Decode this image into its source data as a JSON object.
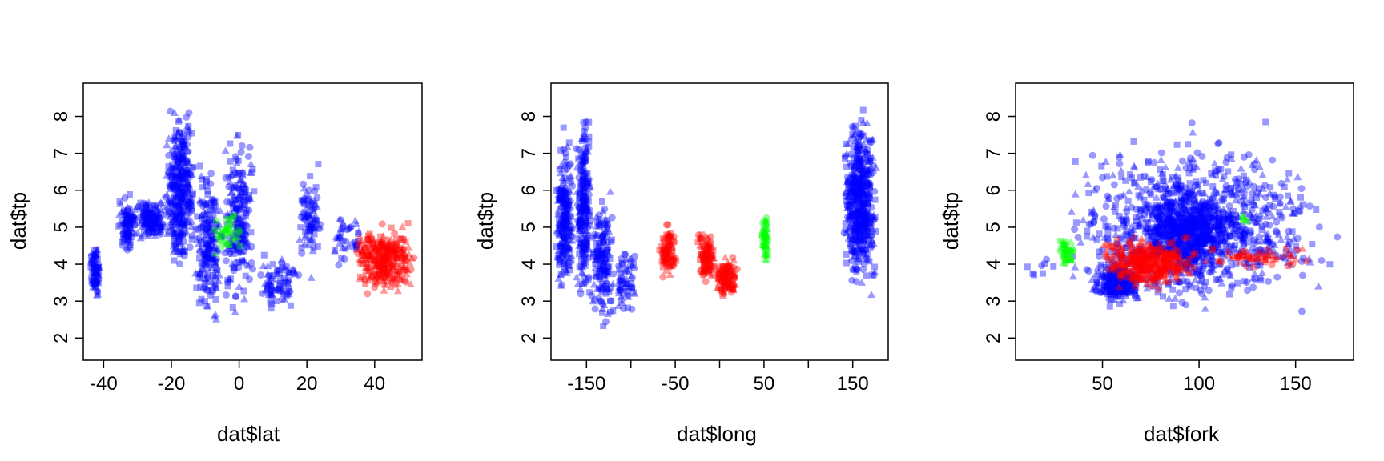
{
  "colors": {
    "blue": "#0000ff",
    "red": "#ff0000",
    "green": "#00ff00",
    "axis": "#000000"
  },
  "chart_data": [
    {
      "type": "scatter",
      "xlabel": "dat$lat",
      "ylabel": "dat$tp",
      "xlim": [
        -46,
        54
      ],
      "ylim": [
        1.4,
        8.9
      ],
      "xticks": [
        "-40",
        "-20",
        "0",
        "20",
        "40"
      ],
      "xtick_values": [
        -40,
        -20,
        0,
        20,
        40
      ],
      "yticks": [
        "2",
        "3",
        "4",
        "5",
        "6",
        "7",
        "8"
      ],
      "yticks_values": [
        2,
        3,
        4,
        5,
        6,
        7,
        8
      ],
      "series": [
        {
          "color": "blue",
          "clusters": [
            {
              "x": [
                -44,
                -41
              ],
              "y": [
                2.9,
                4.7
              ],
              "n": 80
            },
            {
              "x": [
                -36,
                -30
              ],
              "y": [
                4.2,
                6.0
              ],
              "n": 100
            },
            {
              "x": [
                -30,
                -22
              ],
              "y": [
                4.5,
                5.9
              ],
              "n": 140
            },
            {
              "x": [
                -22,
                -13
              ],
              "y": [
                3.3,
                8.6
              ],
              "n": 360
            },
            {
              "x": [
                -13,
                -5
              ],
              "y": [
                2.0,
                7.2
              ],
              "n": 200
            },
            {
              "x": [
                -5,
                5
              ],
              "y": [
                2.4,
                8.2
              ],
              "n": 220
            },
            {
              "x": [
                5,
                18
              ],
              "y": [
                2.6,
                4.5
              ],
              "n": 80
            },
            {
              "x": [
                17,
                25
              ],
              "y": [
                3.5,
                6.8
              ],
              "n": 80
            },
            {
              "x": [
                26,
                36
              ],
              "y": [
                3.7,
                5.6
              ],
              "n": 40
            }
          ]
        },
        {
          "color": "red",
          "clusters": [
            {
              "x": [
                34,
                52
              ],
              "y": [
                3.1,
                5.2
              ],
              "n": 320
            }
          ]
        },
        {
          "color": "green",
          "clusters": [
            {
              "x": [
                -9,
                2
              ],
              "y": [
                4.0,
                5.7
              ],
              "n": 40
            }
          ]
        }
      ]
    },
    {
      "type": "scatter",
      "xlabel": "dat$long",
      "ylabel": "dat$tp",
      "xlim": [
        -190,
        190
      ],
      "ylim": [
        1.4,
        8.9
      ],
      "xticks": [
        "-150",
        "-50",
        "50",
        "150"
      ],
      "xtick_values": [
        -150,
        -50,
        50,
        150
      ],
      "minor_xtick_values": [
        -100,
        0,
        100
      ],
      "yticks": [
        "2",
        "3",
        "4",
        "5",
        "6",
        "7",
        "8"
      ],
      "yticks_values": [
        2,
        3,
        4,
        5,
        6,
        7,
        8
      ],
      "series": [
        {
          "color": "blue",
          "clusters": [
            {
              "x": [
                -185,
                -165
              ],
              "y": [
                2.8,
                7.9
              ],
              "n": 220
            },
            {
              "x": [
                -162,
                -145
              ],
              "y": [
                2.5,
                8.6
              ],
              "n": 240
            },
            {
              "x": [
                -145,
                -118
              ],
              "y": [
                1.8,
                6.3
              ],
              "n": 160
            },
            {
              "x": [
                -118,
                -95
              ],
              "y": [
                2.3,
                4.8
              ],
              "n": 60
            },
            {
              "x": [
                140,
                178
              ],
              "y": [
                2.9,
                8.5
              ],
              "n": 520
            }
          ]
        },
        {
          "color": "red",
          "clusters": [
            {
              "x": [
                -68,
                -48
              ],
              "y": [
                3.5,
                5.2
              ],
              "n": 90
            },
            {
              "x": [
                -25,
                -5
              ],
              "y": [
                3.3,
                5.0
              ],
              "n": 110
            },
            {
              "x": [
                -5,
                20
              ],
              "y": [
                3.0,
                4.3
              ],
              "n": 120
            }
          ]
        },
        {
          "color": "green",
          "clusters": [
            {
              "x": [
                47,
                55
              ],
              "y": [
                3.9,
                5.6
              ],
              "n": 50
            }
          ]
        }
      ]
    },
    {
      "type": "scatter",
      "xlabel": "dat$fork",
      "ylabel": "dat$tp",
      "xlim": [
        5,
        180
      ],
      "ylim": [
        1.4,
        8.9
      ],
      "xticks": [
        "50",
        "100",
        "150"
      ],
      "xtick_values": [
        50,
        100,
        150
      ],
      "yticks": [
        "2",
        "3",
        "4",
        "5",
        "6",
        "7",
        "8"
      ],
      "yticks_values": [
        2,
        3,
        4,
        5,
        6,
        7,
        8
      ],
      "series": [
        {
          "color": "blue",
          "clusters": [
            {
              "x": [
                30,
                160
              ],
              "y": [
                2.4,
                7.6
              ],
              "n": 900
            },
            {
              "x": [
                70,
                120
              ],
              "y": [
                3.8,
                6.0
              ],
              "n": 500
            },
            {
              "x": [
                45,
                70
              ],
              "y": [
                2.8,
                4.2
              ],
              "n": 250
            },
            {
              "x": [
                8,
                30
              ],
              "y": [
                3.4,
                4.2
              ],
              "n": 8
            },
            {
              "x": [
                60,
                175
              ],
              "y": [
                1.6,
                8.6
              ],
              "n": 120
            }
          ]
        },
        {
          "color": "red",
          "clusters": [
            {
              "x": [
                50,
                100
              ],
              "y": [
                3.2,
                4.9
              ],
              "n": 380
            },
            {
              "x": [
                100,
                160
              ],
              "y": [
                3.8,
                4.6
              ],
              "n": 60
            }
          ]
        },
        {
          "color": "green",
          "clusters": [
            {
              "x": [
                27,
                36
              ],
              "y": [
                3.8,
                4.9
              ],
              "n": 40
            },
            {
              "x": [
                118,
                128
              ],
              "y": [
                5.0,
                5.4
              ],
              "n": 6
            }
          ]
        }
      ]
    }
  ]
}
